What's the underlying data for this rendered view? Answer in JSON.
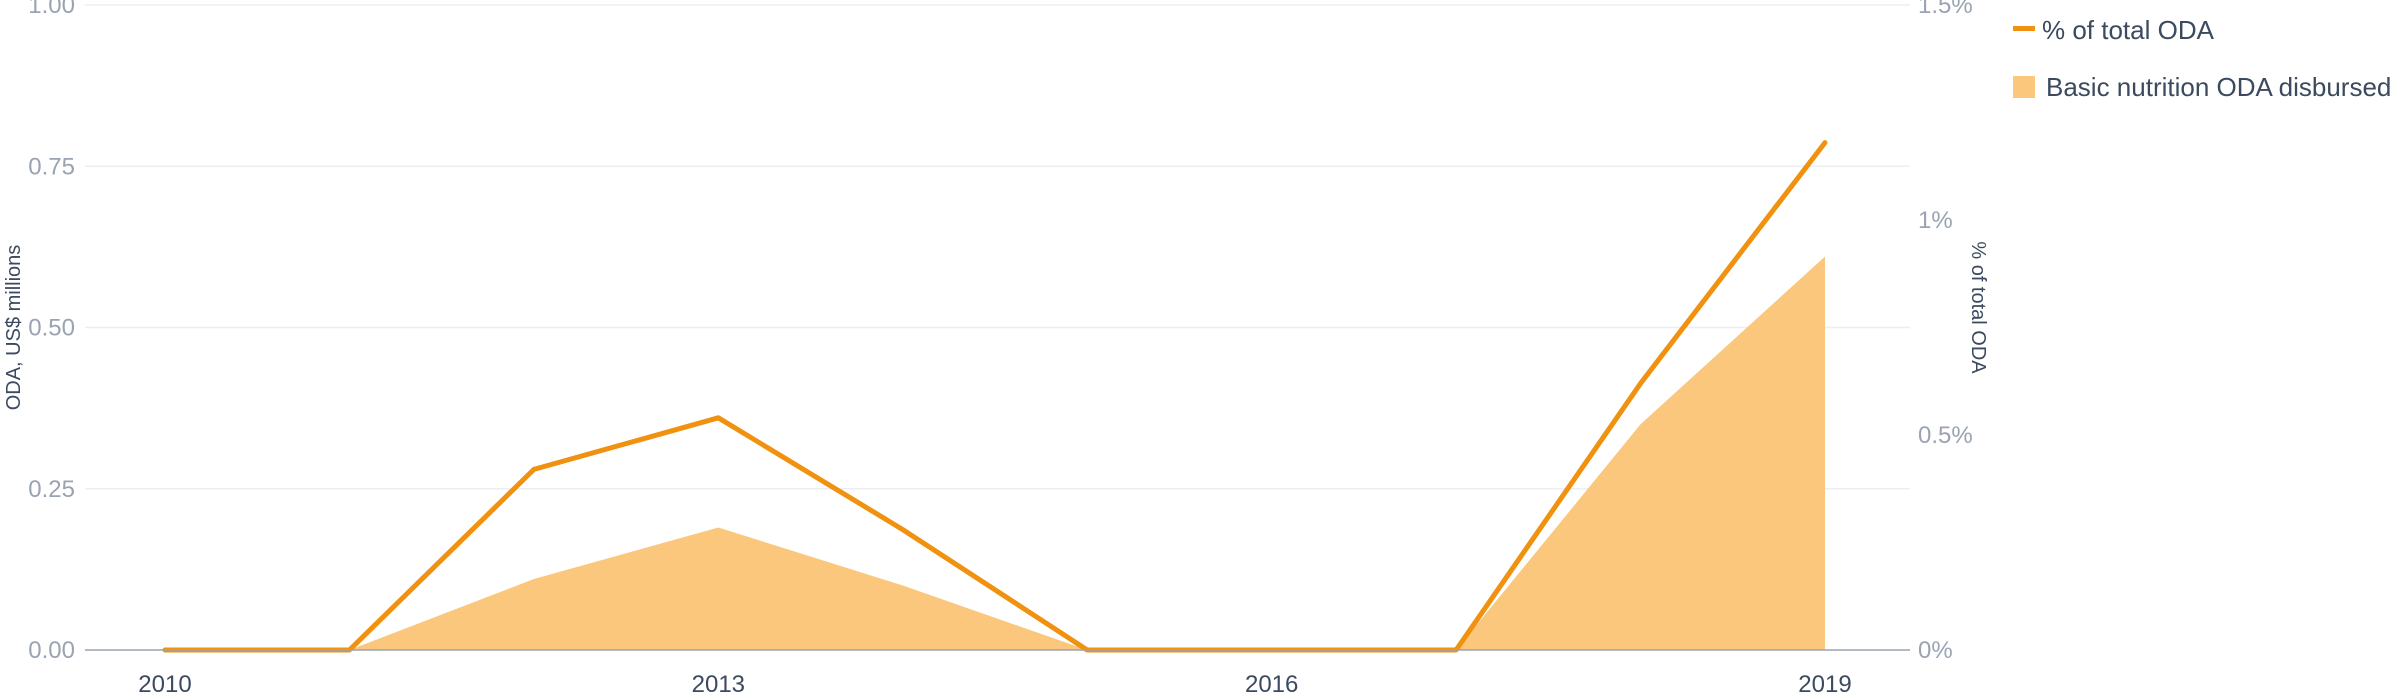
{
  "chart_data": {
    "type": "line",
    "x": [
      2010,
      2011,
      2012,
      2013,
      2014,
      2015,
      2016,
      2017,
      2018,
      2019
    ],
    "x_ticks": [
      "2010",
      "2013",
      "2016",
      "2019"
    ],
    "xlim": [
      2010,
      2019
    ],
    "series": [
      {
        "name": "Basic nutrition ODA disbursed",
        "type": "area",
        "axis": "left",
        "color": "#fac77c",
        "values": [
          0,
          0,
          0.11,
          0.19,
          0.1,
          0,
          0,
          0,
          0.35,
          0.61
        ]
      },
      {
        "name": "% of total ODA",
        "type": "line",
        "axis": "right",
        "color": "#f0910f",
        "values": [
          0,
          0,
          0.42,
          0.54,
          0.28,
          0,
          0,
          0,
          0.62,
          1.18
        ]
      }
    ],
    "y_left": {
      "label": "ODA, US$ millions",
      "ylim": [
        0,
        1
      ],
      "ticks": [
        "0.00",
        "0.25",
        "0.50",
        "0.75",
        "1.00"
      ],
      "tick_values": [
        0,
        0.25,
        0.5,
        0.75,
        1.0
      ]
    },
    "y_right": {
      "label": "% of total ODA",
      "ylim": [
        0,
        1.5
      ],
      "ticks": [
        "0%",
        "0.5%",
        "1%",
        "1.5%"
      ],
      "tick_values": [
        0,
        0.5,
        1.0,
        1.5
      ]
    },
    "grid": true,
    "legend_position": "top-right"
  }
}
